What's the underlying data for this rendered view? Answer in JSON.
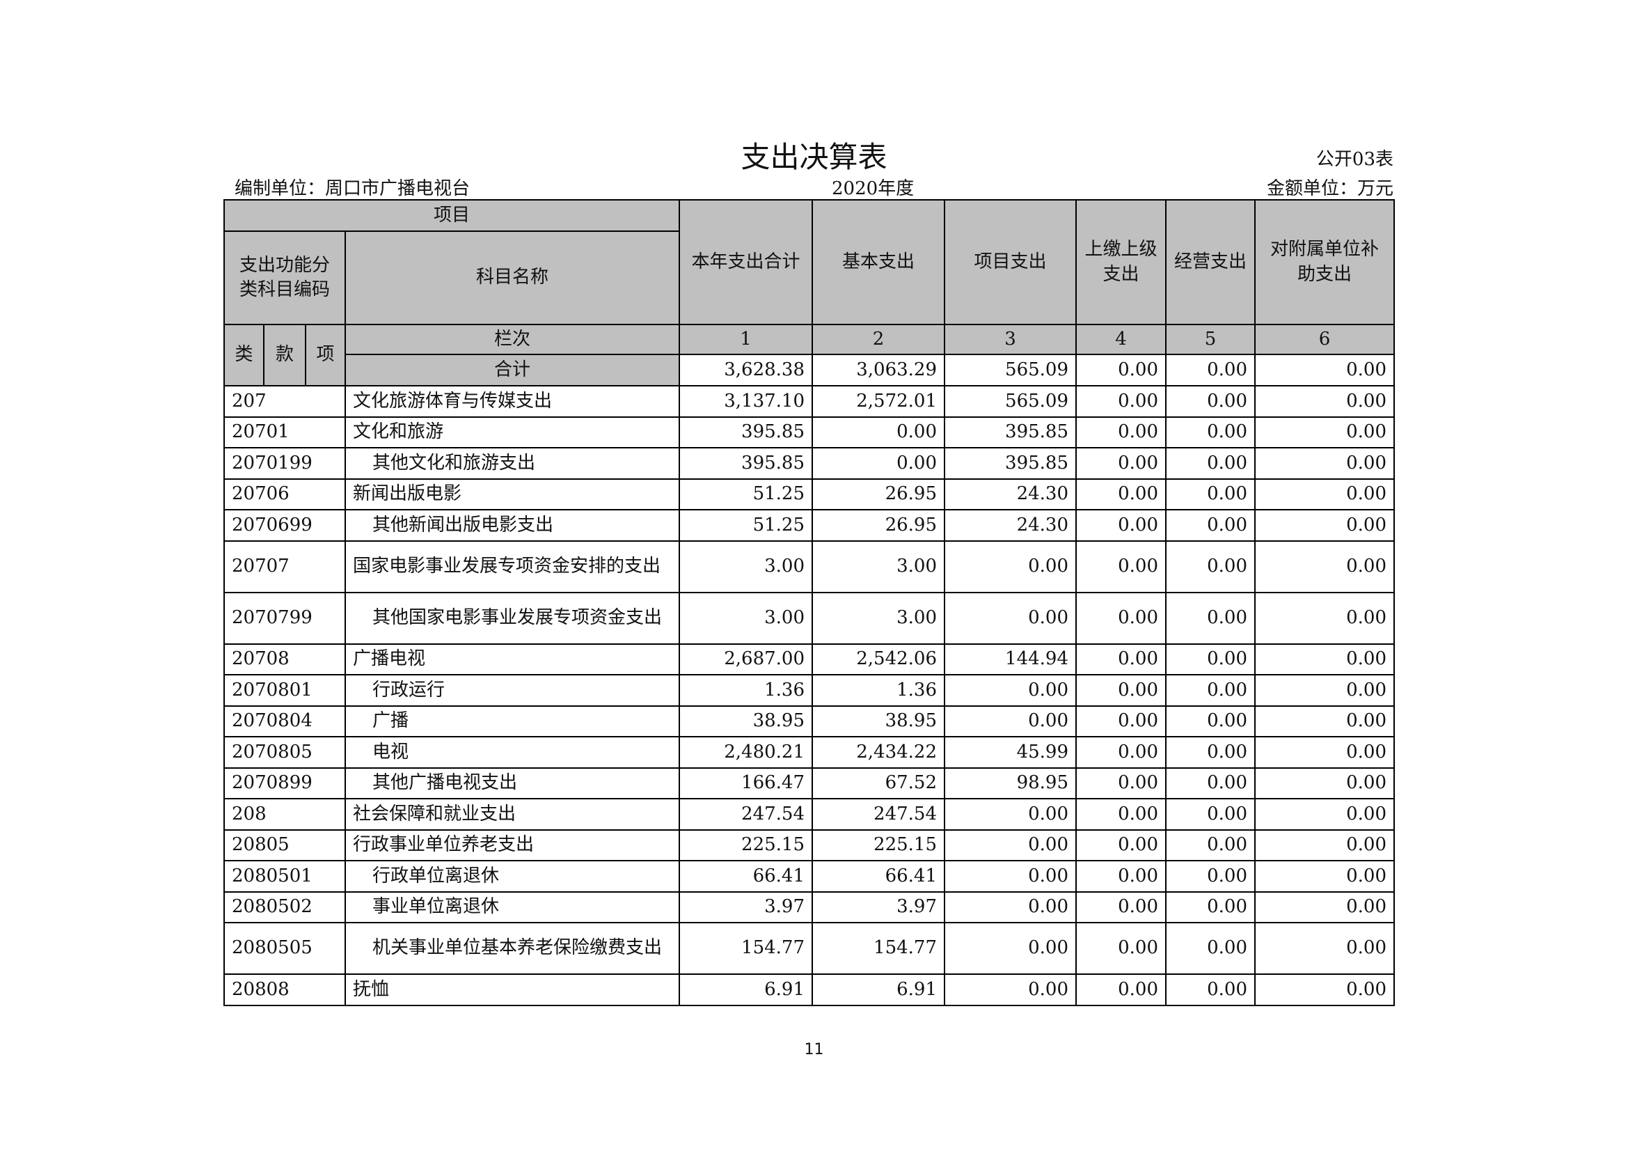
{
  "title": "支出决算表",
  "form_no": "公开03表",
  "unit": "编制单位：周口市广播电视台",
  "year": "2020年度",
  "amount_unit": "金额单位：万元",
  "header": {
    "project": "项目",
    "code_header": "支出功能分类科目编码",
    "name_header": "科目名称",
    "columns": [
      "本年支出合计",
      "基本支出",
      "项目支出",
      "上缴上级支出",
      "经营支出",
      "对附属单位补助支出"
    ],
    "lei": "类",
    "kuan": "款",
    "xiang": "项",
    "lanci": "栏次",
    "col_numbers": [
      "1",
      "2",
      "3",
      "4",
      "5",
      "6"
    ],
    "total_label": "合计",
    "total_values": [
      "3,628.38",
      "3,063.29",
      "565.09",
      "0.00",
      "0.00",
      "0.00"
    ]
  },
  "rows": [
    {
      "code": "207",
      "name": "文化旅游体育与传媒支出",
      "level": 1,
      "values": [
        "3,137.10",
        "2,572.01",
        "565.09",
        "0.00",
        "0.00",
        "0.00"
      ]
    },
    {
      "code": "20701",
      "name": "文化和旅游",
      "level": 2,
      "values": [
        "395.85",
        "0.00",
        "395.85",
        "0.00",
        "0.00",
        "0.00"
      ]
    },
    {
      "code": "2070199",
      "name": "其他文化和旅游支出",
      "level": 3,
      "values": [
        "395.85",
        "0.00",
        "395.85",
        "0.00",
        "0.00",
        "0.00"
      ]
    },
    {
      "code": "20706",
      "name": "新闻出版电影",
      "level": 2,
      "values": [
        "51.25",
        "26.95",
        "24.30",
        "0.00",
        "0.00",
        "0.00"
      ]
    },
    {
      "code": "2070699",
      "name": "其他新闻出版电影支出",
      "level": 3,
      "values": [
        "51.25",
        "26.95",
        "24.30",
        "0.00",
        "0.00",
        "0.00"
      ]
    },
    {
      "code": "20707",
      "name": "国家电影事业发展专项资金安排的支出",
      "level": 2,
      "values": [
        "3.00",
        "3.00",
        "0.00",
        "0.00",
        "0.00",
        "0.00"
      ]
    },
    {
      "code": "2070799",
      "name": "其他国家电影事业发展专项资金支出",
      "level": 3,
      "values": [
        "3.00",
        "3.00",
        "0.00",
        "0.00",
        "0.00",
        "0.00"
      ]
    },
    {
      "code": "20708",
      "name": "广播电视",
      "level": 2,
      "values": [
        "2,687.00",
        "2,542.06",
        "144.94",
        "0.00",
        "0.00",
        "0.00"
      ]
    },
    {
      "code": "2070801",
      "name": "行政运行",
      "level": 3,
      "values": [
        "1.36",
        "1.36",
        "0.00",
        "0.00",
        "0.00",
        "0.00"
      ]
    },
    {
      "code": "2070804",
      "name": "广播",
      "level": 3,
      "values": [
        "38.95",
        "38.95",
        "0.00",
        "0.00",
        "0.00",
        "0.00"
      ]
    },
    {
      "code": "2070805",
      "name": "电视",
      "level": 3,
      "values": [
        "2,480.21",
        "2,434.22",
        "45.99",
        "0.00",
        "0.00",
        "0.00"
      ]
    },
    {
      "code": "2070899",
      "name": "其他广播电视支出",
      "level": 3,
      "values": [
        "166.47",
        "67.52",
        "98.95",
        "0.00",
        "0.00",
        "0.00"
      ]
    },
    {
      "code": "208",
      "name": "社会保障和就业支出",
      "level": 1,
      "values": [
        "247.54",
        "247.54",
        "0.00",
        "0.00",
        "0.00",
        "0.00"
      ]
    },
    {
      "code": "20805",
      "name": "行政事业单位养老支出",
      "level": 2,
      "values": [
        "225.15",
        "225.15",
        "0.00",
        "0.00",
        "0.00",
        "0.00"
      ]
    },
    {
      "code": "2080501",
      "name": "行政单位离退休",
      "level": 3,
      "values": [
        "66.41",
        "66.41",
        "0.00",
        "0.00",
        "0.00",
        "0.00"
      ]
    },
    {
      "code": "2080502",
      "name": "事业单位离退休",
      "level": 3,
      "values": [
        "3.97",
        "3.97",
        "0.00",
        "0.00",
        "0.00",
        "0.00"
      ]
    },
    {
      "code": "2080505",
      "name": "机关事业单位基本养老保险缴费支出",
      "level": 3,
      "values": [
        "154.77",
        "154.77",
        "0.00",
        "0.00",
        "0.00",
        "0.00"
      ]
    },
    {
      "code": "20808",
      "name": "抚恤",
      "level": 2,
      "values": [
        "6.91",
        "6.91",
        "0.00",
        "0.00",
        "0.00",
        "0.00"
      ]
    }
  ],
  "page_number": "11"
}
